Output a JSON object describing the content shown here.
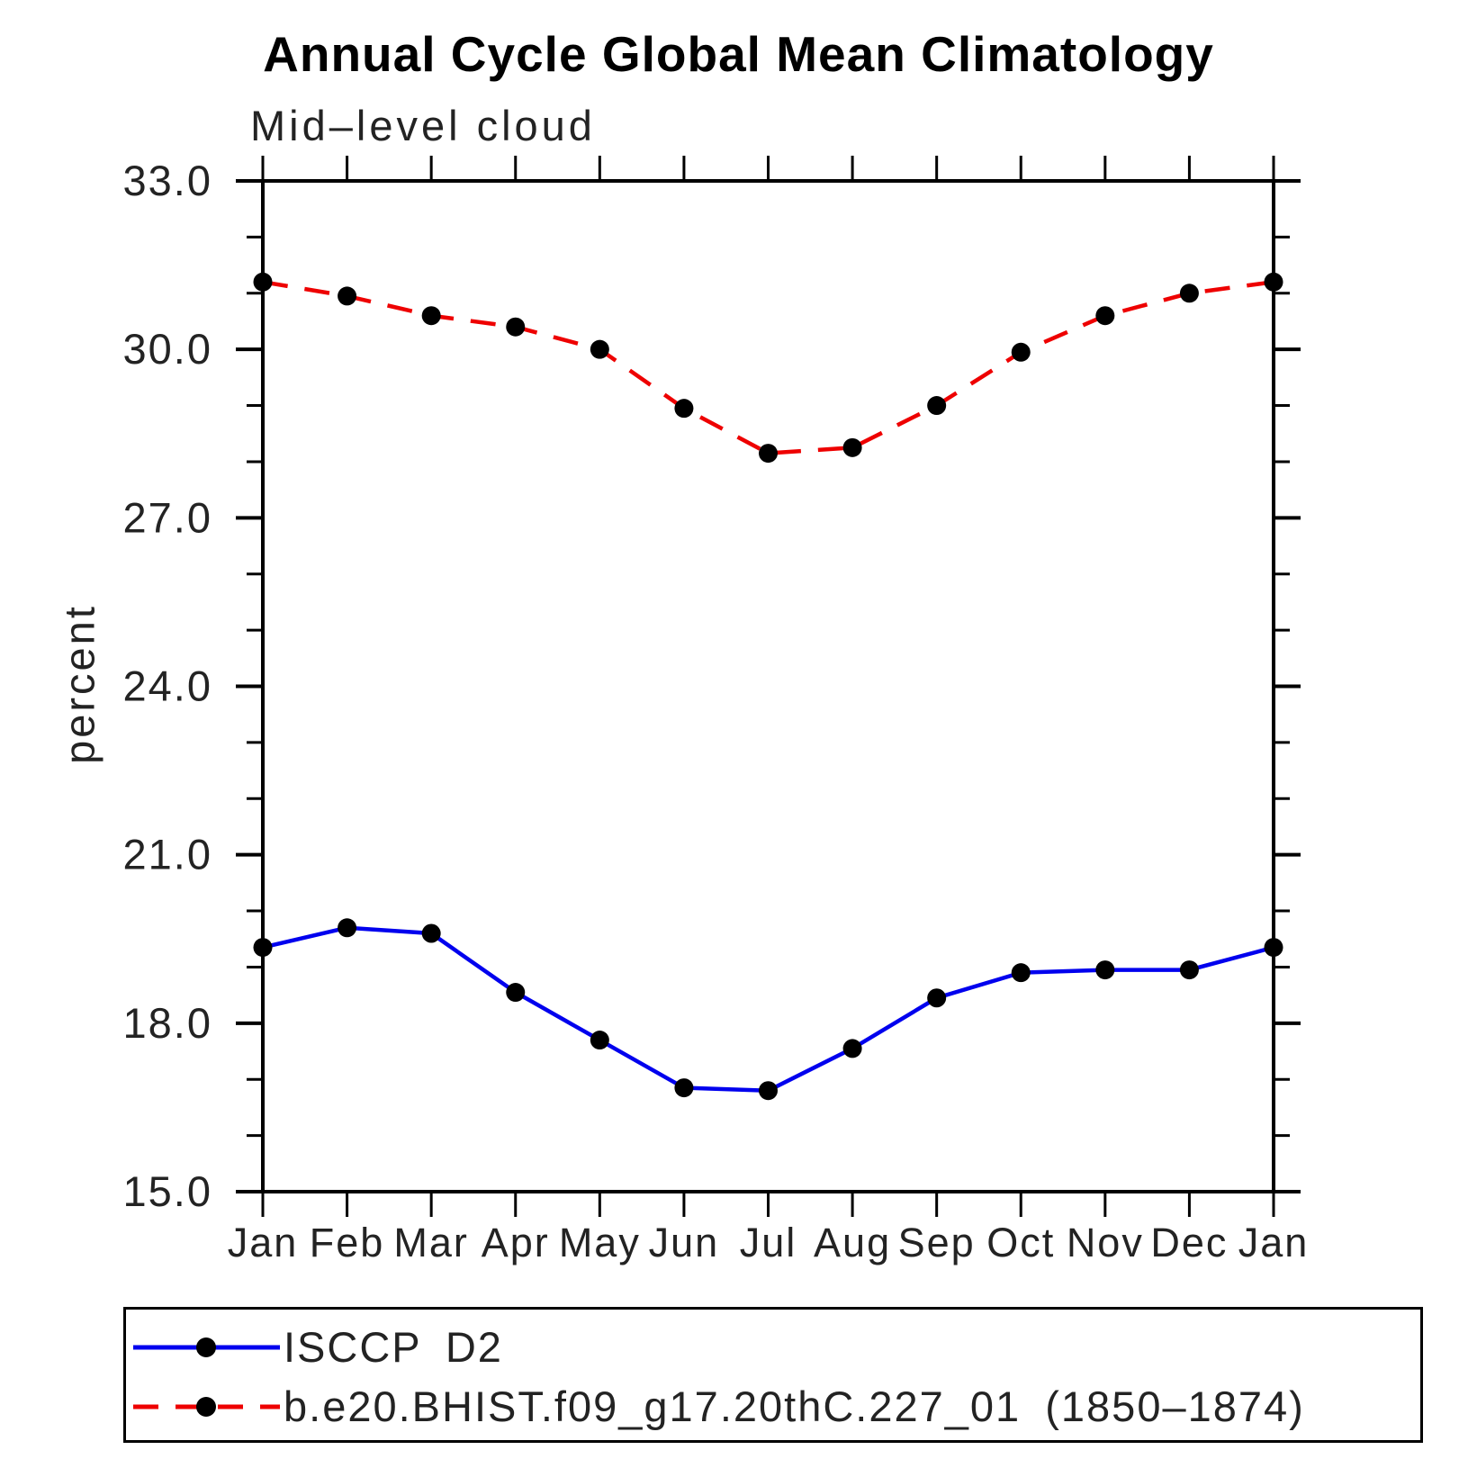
{
  "chart_data": {
    "type": "line",
    "title": "Annual Cycle Global Mean Climatology",
    "subtitle": "Mid–level cloud",
    "ylabel": "percent",
    "categories": [
      "Jan",
      "Feb",
      "Mar",
      "Apr",
      "May",
      "Jun",
      "Jul",
      "Aug",
      "Sep",
      "Oct",
      "Nov",
      "Dec",
      "Jan"
    ],
    "series": [
      {
        "name": "ISCCP D2",
        "color": "#0000ee",
        "line_style": "solid",
        "marker": "black-dot",
        "values": [
          19.35,
          19.7,
          19.6,
          18.55,
          17.7,
          16.85,
          16.8,
          17.55,
          18.45,
          18.9,
          18.95,
          18.95,
          19.35
        ]
      },
      {
        "name": "b.e20.BHIST.f09_g17.20thC.227_01 (1850–1874)",
        "color": "#ee0000",
        "line_style": "dashed",
        "marker": "black-dot",
        "values": [
          31.2,
          30.95,
          30.6,
          30.4,
          30.0,
          28.95,
          28.15,
          28.25,
          29.0,
          29.95,
          30.6,
          31.0,
          31.2
        ]
      }
    ],
    "ylim": [
      15.0,
      33.0
    ],
    "yticks_major": [
      33.0,
      30.0,
      27.0,
      24.0,
      21.0,
      18.0,
      15.0
    ],
    "ytick_minor_step": 1.0,
    "marker_color": "#000000",
    "grid": false,
    "legend_position": "bottom-left-box"
  }
}
